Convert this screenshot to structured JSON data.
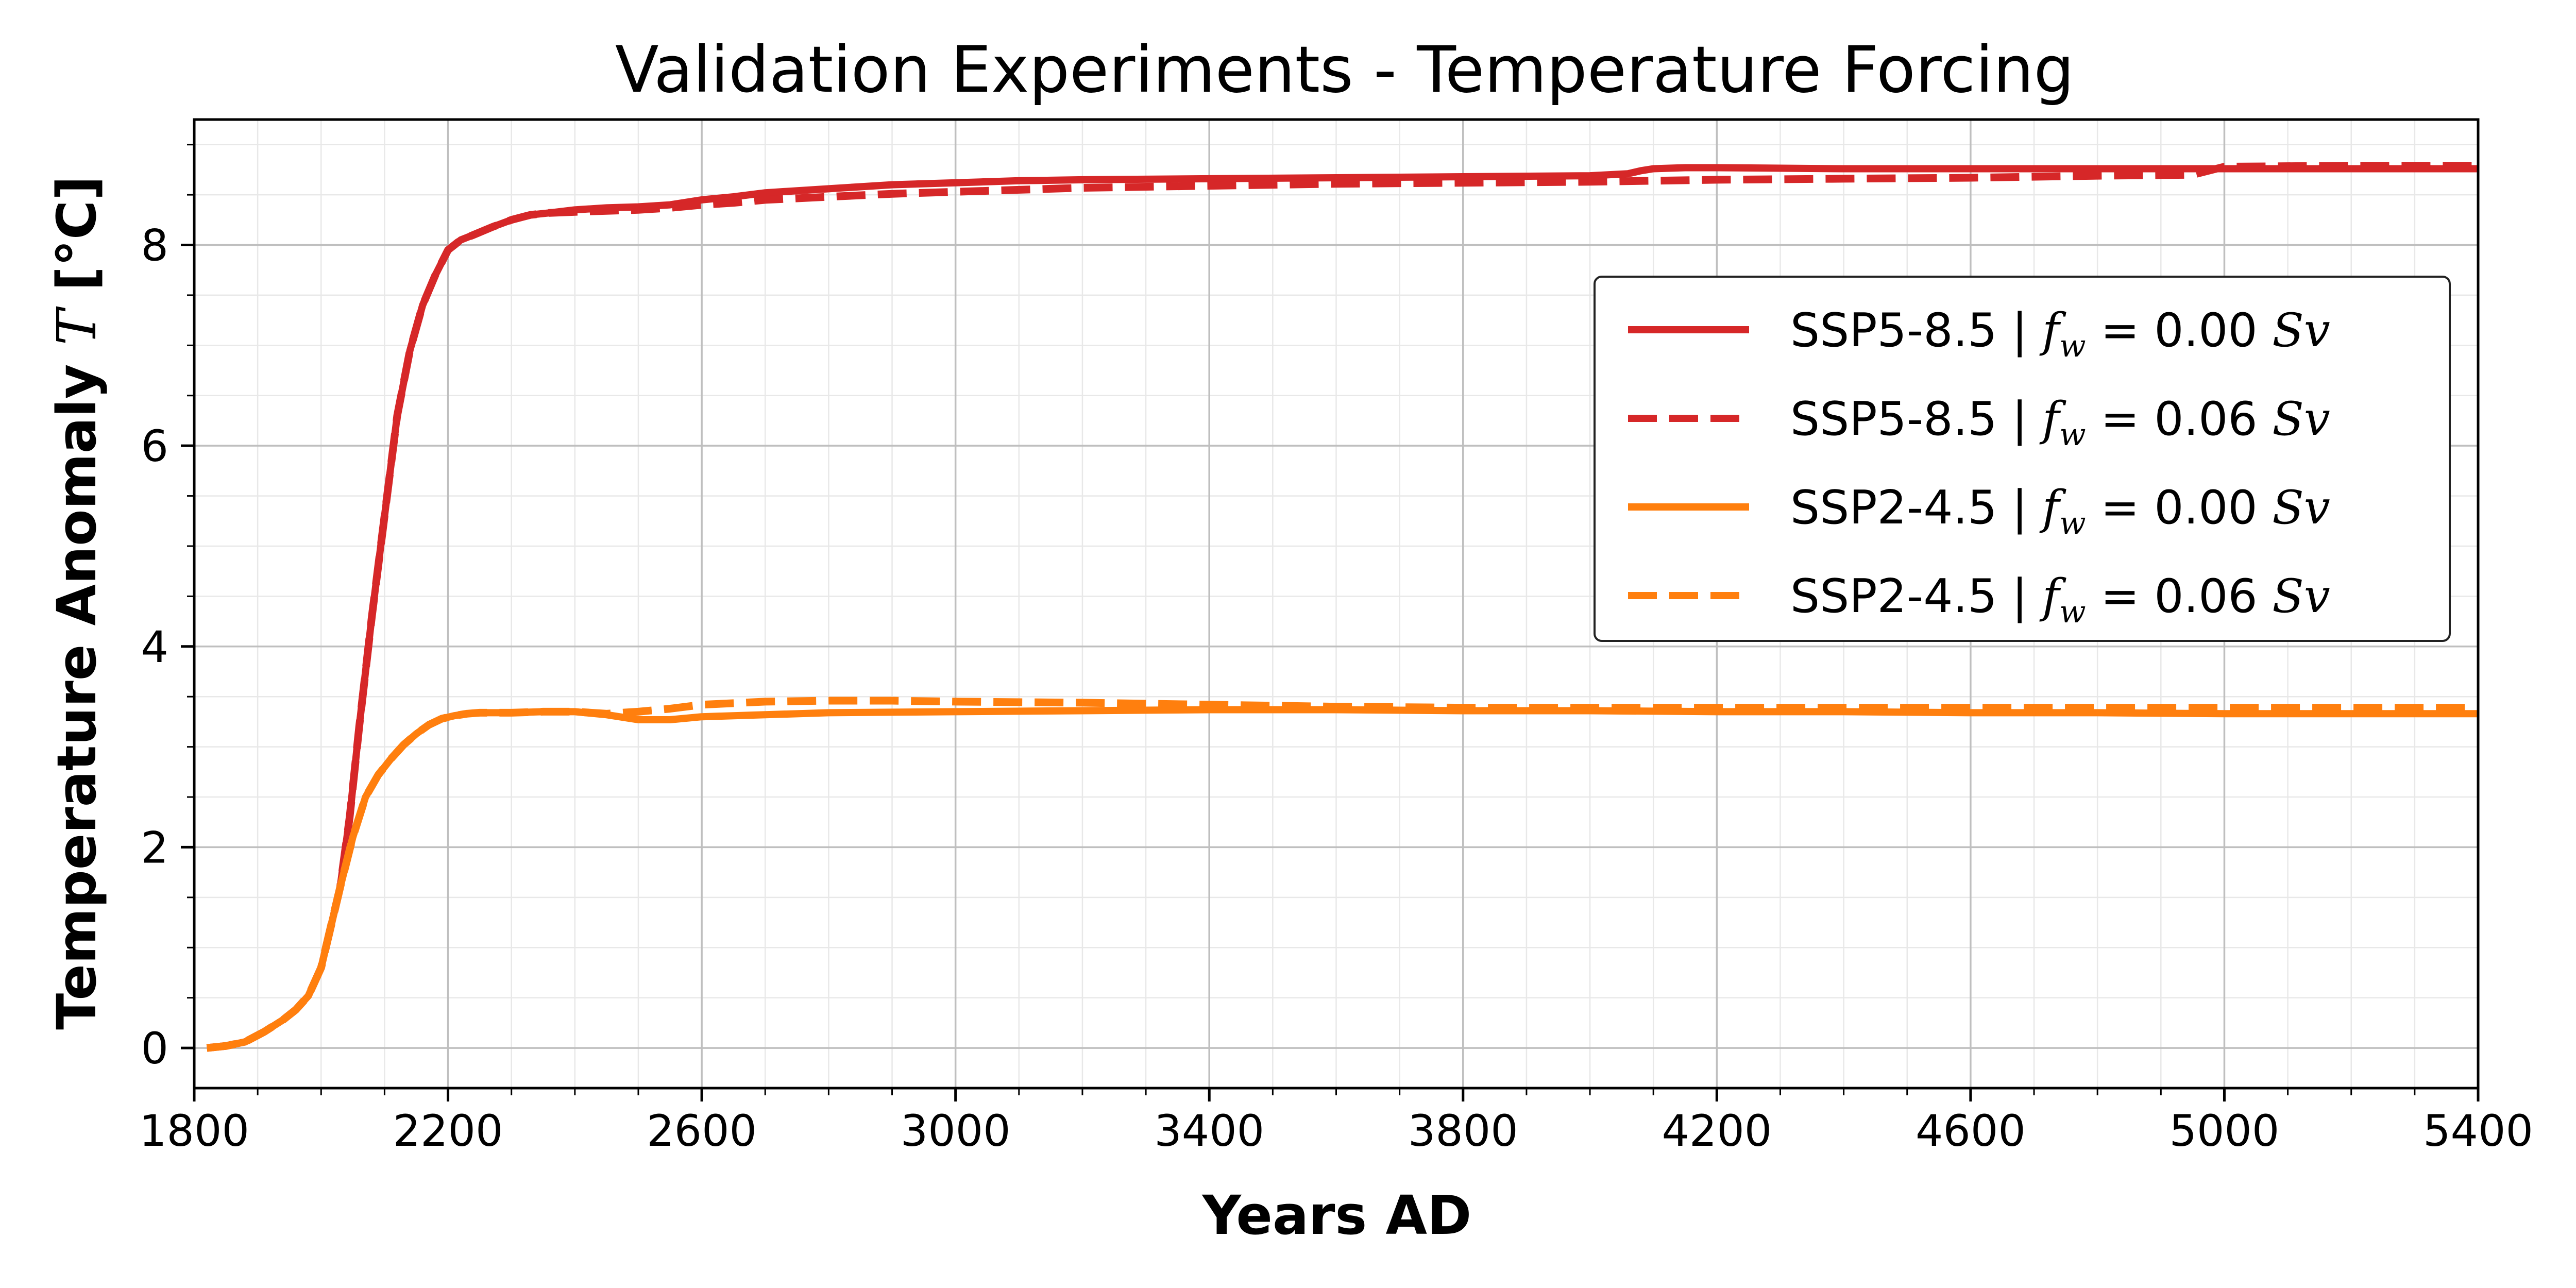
{
  "chart_data": {
    "type": "line",
    "title": "Validation Experiments - Temperature Forcing",
    "xlabel": "Years AD",
    "ylabel": "Temperature Anomaly T [°C]",
    "xlim": [
      1800,
      5400
    ],
    "ylim": [
      -0.4,
      9.25
    ],
    "xticks": [
      1800,
      2200,
      2600,
      3000,
      3400,
      3800,
      4200,
      4600,
      5000,
      5400
    ],
    "yticks": [
      0,
      2,
      4,
      6,
      8
    ],
    "grid": true,
    "legend_position": "upper right",
    "colors": {
      "ssp585": "#d62728",
      "ssp245": "#ff7f0e"
    },
    "series": [
      {
        "name": "SSP5-8.5 | f_w = 0.00 Sv",
        "color": "#d62728",
        "linestyle": "solid",
        "x": [
          1820,
          1850,
          1880,
          1910,
          1940,
          1960,
          1980,
          2000,
          2015,
          2030,
          2045,
          2060,
          2080,
          2100,
          2120,
          2140,
          2160,
          2180,
          2200,
          2220,
          2240,
          2270,
          2300,
          2330,
          2360,
          2400,
          2450,
          2500,
          2550,
          2600,
          2650,
          2700,
          2800,
          2900,
          3000,
          3100,
          3200,
          3400,
          3600,
          3800,
          4000,
          4060,
          4080,
          4100,
          4150,
          4200,
          4400,
          4600,
          4800,
          5000,
          5200,
          5400
        ],
        "values": [
          0.0,
          0.02,
          0.06,
          0.16,
          0.28,
          0.38,
          0.52,
          0.8,
          1.2,
          1.6,
          2.3,
          3.2,
          4.3,
          5.3,
          6.3,
          6.95,
          7.4,
          7.7,
          7.95,
          8.05,
          8.1,
          8.18,
          8.25,
          8.3,
          8.32,
          8.35,
          8.37,
          8.38,
          8.4,
          8.45,
          8.48,
          8.52,
          8.56,
          8.6,
          8.62,
          8.64,
          8.65,
          8.66,
          8.67,
          8.68,
          8.69,
          8.71,
          8.74,
          8.76,
          8.77,
          8.77,
          8.76,
          8.76,
          8.76,
          8.76,
          8.76,
          8.76
        ]
      },
      {
        "name": "SSP5-8.5 | f_w = 0.06 Sv",
        "color": "#d62728",
        "linestyle": "dashed",
        "x": [
          1820,
          1850,
          1880,
          1910,
          1940,
          1960,
          1980,
          2000,
          2015,
          2030,
          2045,
          2060,
          2080,
          2100,
          2120,
          2140,
          2160,
          2180,
          2200,
          2220,
          2240,
          2270,
          2300,
          2330,
          2360,
          2400,
          2450,
          2500,
          2550,
          2600,
          2650,
          2700,
          2800,
          2900,
          3000,
          3100,
          3200,
          3400,
          3600,
          3800,
          4000,
          4200,
          4400,
          4600,
          4800,
          4950,
          5000,
          5200,
          5400
        ],
        "values": [
          0.0,
          0.02,
          0.06,
          0.16,
          0.28,
          0.38,
          0.52,
          0.8,
          1.2,
          1.6,
          2.3,
          3.2,
          4.3,
          5.3,
          6.3,
          6.95,
          7.4,
          7.7,
          7.95,
          8.05,
          8.1,
          8.18,
          8.25,
          8.3,
          8.32,
          8.33,
          8.34,
          8.35,
          8.37,
          8.4,
          8.42,
          8.45,
          8.48,
          8.51,
          8.53,
          8.55,
          8.57,
          8.59,
          8.61,
          8.62,
          8.63,
          8.65,
          8.66,
          8.67,
          8.69,
          8.7,
          8.78,
          8.79,
          8.79
        ]
      },
      {
        "name": "SSP2-4.5 | f_w = 0.00 Sv",
        "color": "#ff7f0e",
        "linestyle": "solid",
        "x": [
          1820,
          1850,
          1880,
          1910,
          1940,
          1960,
          1980,
          2000,
          2015,
          2030,
          2050,
          2070,
          2090,
          2110,
          2130,
          2150,
          2170,
          2190,
          2210,
          2230,
          2250,
          2300,
          2350,
          2400,
          2450,
          2500,
          2550,
          2600,
          2700,
          2800,
          3000,
          3200,
          3400,
          3600,
          3800,
          4000,
          4200,
          4400,
          4600,
          4800,
          5000,
          5200,
          5400
        ],
        "values": [
          0.0,
          0.02,
          0.06,
          0.16,
          0.28,
          0.38,
          0.52,
          0.8,
          1.2,
          1.6,
          2.1,
          2.5,
          2.72,
          2.88,
          3.02,
          3.13,
          3.22,
          3.28,
          3.31,
          3.33,
          3.34,
          3.34,
          3.35,
          3.35,
          3.32,
          3.27,
          3.27,
          3.3,
          3.32,
          3.34,
          3.35,
          3.36,
          3.37,
          3.37,
          3.36,
          3.36,
          3.35,
          3.35,
          3.34,
          3.34,
          3.33,
          3.33,
          3.33
        ]
      },
      {
        "name": "SSP2-4.5 | f_w = 0.06 Sv",
        "color": "#ff7f0e",
        "linestyle": "dashed",
        "x": [
          1820,
          1850,
          1880,
          1910,
          1940,
          1960,
          1980,
          2000,
          2015,
          2030,
          2050,
          2070,
          2090,
          2110,
          2130,
          2150,
          2170,
          2190,
          2210,
          2230,
          2250,
          2300,
          2350,
          2400,
          2450,
          2500,
          2550,
          2600,
          2700,
          2800,
          2900,
          3000,
          3200,
          3400,
          3600,
          3800,
          4000,
          4200,
          4400,
          4600,
          4800,
          5000,
          5200,
          5400
        ],
        "values": [
          0.0,
          0.02,
          0.06,
          0.16,
          0.28,
          0.38,
          0.52,
          0.8,
          1.2,
          1.6,
          2.1,
          2.5,
          2.72,
          2.88,
          3.02,
          3.13,
          3.22,
          3.28,
          3.31,
          3.33,
          3.34,
          3.34,
          3.35,
          3.35,
          3.33,
          3.35,
          3.38,
          3.42,
          3.45,
          3.46,
          3.46,
          3.45,
          3.44,
          3.42,
          3.4,
          3.39,
          3.39,
          3.39,
          3.39,
          3.39,
          3.39,
          3.39,
          3.39,
          3.39
        ]
      }
    ]
  },
  "legend": {
    "entries": [
      {
        "label": "SSP5-8.5 | ",
        "var": "f",
        "sub": "w",
        "eq": " = 0.00 ",
        "unit": "Sv"
      },
      {
        "label": "SSP5-8.5 | ",
        "var": "f",
        "sub": "w",
        "eq": " = 0.06 ",
        "unit": "Sv"
      },
      {
        "label": "SSP2-4.5 | ",
        "var": "f",
        "sub": "w",
        "eq": " = 0.00 ",
        "unit": "Sv"
      },
      {
        "label": "SSP2-4.5 | ",
        "var": "f",
        "sub": "w",
        "eq": " = 0.06 ",
        "unit": "Sv"
      }
    ]
  },
  "ylabel_parts": {
    "pre": "Temperature Anomaly ",
    "var": "T",
    "post": " [°C]"
  }
}
